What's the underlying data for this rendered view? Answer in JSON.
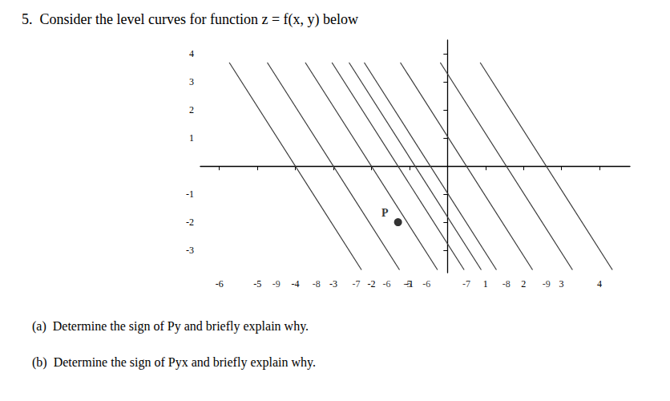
{
  "chart_data": {
    "type": "line",
    "title": "5.  Consider the level curves for function z = f(x, y) below",
    "color": "#3a3a3a",
    "grid": false,
    "xlim": [
      -6.5,
      4.8
    ],
    "ylim": [
      -3.8,
      4.5
    ],
    "xticks": [
      -6,
      -5,
      -4,
      -3,
      -2,
      -1,
      1,
      2,
      3,
      4
    ],
    "yticks": [
      4,
      3,
      2,
      1,
      -1,
      -2,
      -3
    ],
    "series": [
      {
        "x": [
          -2.261,
          -5.739
        ],
        "values": [
          -3.7,
          3.7
        ]
      },
      {
        "x": [
          -1.261,
          -4.739
        ],
        "values": [
          -3.7,
          3.7
        ]
      },
      {
        "x": [
          -0.261,
          -3.739
        ],
        "values": [
          -3.7,
          3.7
        ]
      },
      {
        "x": [
          0.439,
          -3.039
        ],
        "values": [
          -3.7,
          3.7
        ]
      },
      {
        "x": [
          0.889,
          -2.589
        ],
        "values": [
          -3.7,
          3.7
        ]
      },
      {
        "x": [
          1.289,
          -2.189
        ],
        "values": [
          -3.7,
          3.7
        ]
      },
      {
        "x": [
          2.239,
          -1.239
        ],
        "values": [
          -3.7,
          3.7
        ]
      },
      {
        "x": [
          3.289,
          -0.189
        ],
        "values": [
          -3.7,
          3.7
        ]
      },
      {
        "x": [
          4.339,
          0.861
        ],
        "values": [
          -3.7,
          3.7
        ]
      },
      {
        "type": "scatter",
        "name": "P",
        "color": "#000000",
        "x": [
          -1.3
        ],
        "values": [
          -2.0
        ]
      }
    ],
    "annotations": [
      {
        "x": -4.5,
        "text": "-9"
      },
      {
        "x": -3.45,
        "text": "-8"
      },
      {
        "x": -2.4,
        "text": "-7"
      },
      {
        "x": -1.6,
        "text": "-6"
      },
      {
        "x": -1.05,
        "text": "-5"
      },
      {
        "x": -0.55,
        "text": "-6"
      },
      {
        "x": 0.5,
        "text": "-7"
      },
      {
        "x": 1.55,
        "text": "-8"
      },
      {
        "x": 2.6,
        "text": "-9"
      },
      {
        "text": "(a)  Determine the sign of Py and briefly explain why."
      },
      {
        "text": "(b)  Determine the sign of Pyx and briefly explain why."
      }
    ]
  }
}
